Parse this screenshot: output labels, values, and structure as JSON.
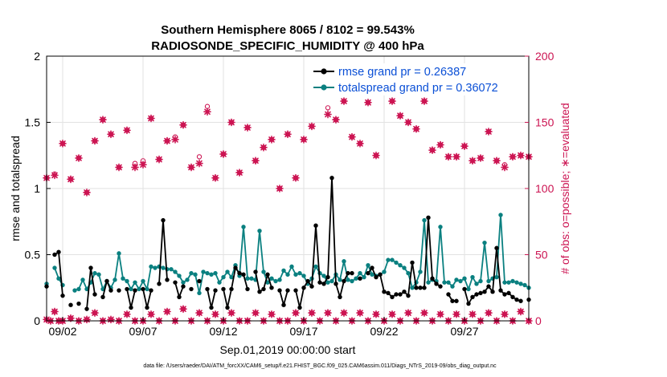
{
  "chart_data": {
    "type": "line",
    "title": "Southern Hemisphere 8065 / 8102 = 99.543%",
    "subtitle": "RADIOSONDE_SPECIFIC_HUMIDITY @ 400 hPa",
    "xlabel": "Sep.01,2019 00:00:00 start",
    "ylabel": "rmse and totalspread",
    "y2label": "# of obs: o=possible; ∗=evaluated",
    "footer": "data file: /Users/raeder/DAI/ATM_forcXX/CAM6_setup/f.e21.FHIST_BGC.f09_025.CAM6assim.011/Diags_NTrS_2019-09/obs_diag_output.nc",
    "xlim": [
      1,
      31
    ],
    "ylim": [
      0,
      2
    ],
    "y2lim": [
      0,
      200
    ],
    "grid": true,
    "legend_position": "top-right",
    "x_ticks": [
      {
        "value": 2,
        "label": "09/02"
      },
      {
        "value": 7,
        "label": "09/07"
      },
      {
        "value": 12,
        "label": "09/12"
      },
      {
        "value": 17,
        "label": "09/17"
      },
      {
        "value": 22,
        "label": "09/22"
      },
      {
        "value": 27,
        "label": "09/27"
      }
    ],
    "y_ticks": [
      {
        "value": 0,
        "label": "0"
      },
      {
        "value": 0.5,
        "label": "0.5"
      },
      {
        "value": 1,
        "label": "1"
      },
      {
        "value": 1.5,
        "label": "1.5"
      },
      {
        "value": 2,
        "label": "2"
      }
    ],
    "y2_ticks": [
      {
        "value": 0,
        "label": "0"
      },
      {
        "value": 50,
        "label": "50"
      },
      {
        "value": 100,
        "label": "100"
      },
      {
        "value": 150,
        "label": "150"
      },
      {
        "value": 200,
        "label": "200"
      }
    ],
    "x": [
      1.0,
      1.25,
      1.5,
      1.75,
      2.0,
      2.25,
      2.5,
      2.75,
      3.0,
      3.25,
      3.5,
      3.75,
      4.0,
      4.25,
      4.5,
      4.75,
      5.0,
      5.25,
      5.5,
      5.75,
      6.0,
      6.25,
      6.5,
      6.75,
      7.0,
      7.25,
      7.5,
      7.75,
      8.0,
      8.25,
      8.5,
      8.75,
      9.0,
      9.25,
      9.5,
      9.75,
      10.0,
      10.25,
      10.5,
      10.75,
      11.0,
      11.25,
      11.5,
      11.75,
      12.0,
      12.25,
      12.5,
      12.75,
      13.0,
      13.25,
      13.5,
      13.75,
      14.0,
      14.25,
      14.5,
      14.75,
      15.0,
      15.25,
      15.5,
      15.75,
      16.0,
      16.25,
      16.5,
      16.75,
      17.0,
      17.25,
      17.5,
      17.75,
      18.0,
      18.25,
      18.5,
      18.75,
      19.0,
      19.25,
      19.5,
      19.75,
      20.0,
      20.25,
      20.5,
      20.75,
      21.0,
      21.25,
      21.5,
      21.75,
      22.0,
      22.25,
      22.5,
      22.75,
      23.0,
      23.25,
      23.5,
      23.75,
      24.0,
      24.25,
      24.5,
      24.75,
      25.0,
      25.25,
      25.5,
      25.75,
      26.0,
      26.25,
      26.5,
      26.75,
      27.0,
      27.25,
      27.5,
      27.75,
      28.0,
      28.25,
      28.5,
      28.75,
      29.0,
      29.25,
      29.5,
      29.75,
      30.0,
      30.25,
      30.5,
      30.75,
      31.0
    ],
    "series": [
      {
        "name": "rmse grand pr = 0.26387",
        "label": "rmse grand pr = 0.26387",
        "color": "#000000",
        "values": [
          0.26,
          null,
          0.5,
          0.52,
          0.19,
          null,
          0.12,
          null,
          0.13,
          null,
          0.09,
          0.4,
          0.2,
          null,
          0.18,
          0.3,
          0.23,
          null,
          0.23,
          null,
          0.24,
          0.1,
          0.23,
          null,
          0.24,
          0.1,
          0.23,
          null,
          0.28,
          0.76,
          0.31,
          null,
          0.29,
          0.18,
          0.26,
          null,
          0.24,
          null,
          0.3,
          null,
          0.24,
          0.1,
          0.23,
          null,
          0.24,
          0.1,
          0.24,
          0.4,
          0.36,
          0.35,
          0.24,
          null,
          0.37,
          0.22,
          0.24,
          0.35,
          0.25,
          null,
          0.23,
          0.12,
          0.23,
          null,
          0.23,
          0.1,
          0.25,
          0.3,
          0.26,
          0.72,
          0.29,
          0.28,
          0.33,
          1.08,
          0.28,
          0.18,
          0.3,
          0.36,
          0.36,
          null,
          0.32,
          null,
          0.36,
          0.4,
          0.33,
          0.35,
          0.22,
          0.21,
          0.18,
          0.2,
          0.2,
          0.22,
          0.19,
          0.44,
          0.25,
          0.25,
          0.25,
          0.78,
          0.32,
          0.28,
          0.26,
          null,
          0.2,
          0.15,
          0.15,
          null,
          0.24,
          0.13,
          0.18,
          0.2,
          0.21,
          0.22,
          0.26,
          0.22,
          0.55,
          0.23,
          0.2,
          0.21,
          0.18,
          0.16,
          0.15,
          null,
          0.16
        ]
      },
      {
        "name": "totalspread grand pr = 0.36072",
        "label": "totalspread grand pr = 0.36072",
        "color": "#0a8080",
        "values": [
          0.28,
          null,
          0.4,
          0.32,
          0.27,
          null,
          null,
          0.23,
          0.24,
          0.31,
          0.24,
          0.29,
          0.36,
          0.35,
          0.24,
          0.3,
          0.25,
          0.31,
          0.51,
          0.32,
          0.3,
          0.24,
          0.29,
          0.24,
          0.3,
          0.24,
          0.41,
          0.4,
          0.41,
          0.4,
          0.39,
          0.39,
          0.37,
          0.34,
          0.29,
          0.31,
          0.36,
          0.35,
          0.21,
          0.37,
          0.36,
          0.35,
          0.36,
          0.29,
          0.33,
          0.37,
          0.33,
          0.42,
          0.34,
          0.71,
          0.32,
          0.32,
          0.31,
          0.68,
          0.37,
          0.29,
          0.32,
          0.3,
          0.31,
          0.38,
          0.35,
          0.41,
          0.35,
          0.36,
          0.34,
          0.28,
          0.32,
          0.41,
          0.36,
          0.34,
          0.29,
          0.3,
          0.35,
          0.31,
          0.45,
          0.31,
          0.3,
          0.32,
          0.36,
          0.33,
          0.42,
          0.35,
          0.34,
          0.35,
          0.37,
          0.46,
          0.46,
          0.44,
          0.42,
          0.4,
          0.36,
          0.25,
          0.29,
          0.37,
          0.76,
          0.29,
          0.31,
          0.3,
          0.71,
          0.29,
          0.29,
          0.26,
          0.31,
          0.3,
          0.32,
          0.24,
          0.33,
          0.28,
          0.3,
          0.59,
          0.3,
          0.32,
          0.33,
          0.8,
          0.29,
          0.29,
          0.3,
          0.29,
          0.28,
          0.27,
          0.25
        ]
      }
    ],
    "obs_series": [
      {
        "name": "possible",
        "marker": "o",
        "color": "#cc1452",
        "x": [
          1.0,
          1.5,
          2.0,
          2.5,
          3.0,
          3.5,
          4.0,
          4.5,
          5.0,
          5.5,
          6.0,
          6.5,
          7.0,
          7.5,
          8.0,
          8.5,
          9.0,
          9.5,
          10.0,
          10.5,
          11.0,
          11.5,
          12.0,
          12.5,
          13.0,
          13.5,
          14.0,
          14.5,
          15.0,
          15.5,
          16.0,
          16.5,
          17.0,
          17.5,
          18.0,
          18.5,
          19.0,
          19.5,
          20.0,
          20.5,
          21.0,
          21.5,
          22.0,
          22.5,
          23.0,
          23.5,
          24.0,
          24.5,
          25.0,
          25.5,
          26.0,
          26.5,
          27.0,
          27.5,
          28.0,
          28.5,
          29.0,
          29.5,
          30.0,
          30.5,
          31.0
        ],
        "values": [
          108,
          111,
          134,
          107,
          123,
          97,
          136,
          152,
          141,
          116,
          144,
          119,
          121,
          153,
          122,
          136,
          139,
          148,
          116,
          124,
          162,
          108,
          126,
          150,
          112,
          146,
          121,
          131,
          137,
          100,
          141,
          108,
          137,
          147,
          174,
          161,
          152,
          166,
          139,
          134,
          165,
          125,
          186,
          166,
          155,
          150,
          145,
          166,
          129,
          133,
          124,
          124,
          132,
          121,
          123,
          143,
          121,
          118,
          124,
          125,
          124
        ]
      },
      {
        "name": "evaluated",
        "marker": "*",
        "color": "#cc1452",
        "x": [
          1.0,
          1.5,
          2.0,
          2.5,
          3.0,
          3.5,
          4.0,
          4.5,
          5.0,
          5.5,
          6.0,
          6.5,
          7.0,
          7.5,
          8.0,
          8.5,
          9.0,
          9.5,
          10.0,
          10.5,
          11.0,
          11.5,
          12.0,
          12.5,
          13.0,
          13.5,
          14.0,
          14.5,
          15.0,
          15.5,
          16.0,
          16.5,
          17.0,
          17.5,
          18.0,
          18.5,
          19.0,
          19.5,
          20.0,
          20.5,
          21.0,
          21.5,
          22.0,
          22.5,
          23.0,
          23.5,
          24.0,
          24.5,
          25.0,
          25.5,
          26.0,
          26.5,
          27.0,
          27.5,
          28.0,
          28.5,
          29.0,
          29.5,
          30.0,
          30.5,
          31.0
        ],
        "values": [
          108,
          110,
          134,
          107,
          123,
          97,
          136,
          152,
          141,
          116,
          144,
          116,
          118,
          153,
          122,
          136,
          137,
          148,
          116,
          119,
          158,
          108,
          126,
          150,
          112,
          146,
          121,
          131,
          137,
          100,
          141,
          108,
          137,
          147,
          174,
          156,
          152,
          166,
          139,
          134,
          165,
          125,
          186,
          166,
          155,
          150,
          145,
          166,
          129,
          133,
          124,
          124,
          132,
          121,
          123,
          143,
          121,
          116,
          124,
          125,
          124
        ]
      },
      {
        "name": "possible-baseline",
        "marker": "o",
        "color": "#cc1452",
        "x": [
          1.0,
          1.25,
          1.5,
          1.75,
          2.0,
          2.5,
          3.0,
          3.5,
          4.0,
          4.5,
          5.0,
          5.5,
          6.0,
          6.5,
          7.0,
          7.5,
          8.0,
          8.5,
          9.0,
          9.5,
          10.0,
          10.5,
          11.0,
          11.5,
          12.0,
          12.5,
          13.0,
          13.5,
          14.0,
          14.5,
          15.0,
          15.5,
          16.0,
          16.5,
          17.0,
          17.5,
          18.0,
          18.5,
          19.0,
          19.5,
          20.0,
          20.5,
          21.0,
          21.5,
          22.0,
          22.5,
          23.0,
          23.5,
          24.0,
          24.5,
          25.0,
          25.5,
          26.0,
          26.5,
          27.0,
          27.5,
          28.0,
          28.5,
          29.0,
          29.5,
          30.0,
          30.5,
          31.0
        ],
        "values": [
          1,
          0,
          7,
          0,
          0,
          2,
          0,
          1,
          6,
          0,
          1,
          0,
          5,
          0,
          0,
          5,
          0,
          7,
          0,
          9,
          0,
          6,
          0,
          5,
          0,
          6,
          0,
          0,
          6,
          0,
          5,
          0,
          0,
          6,
          0,
          6,
          0,
          6,
          0,
          6,
          0,
          6,
          0,
          5,
          0,
          5,
          0,
          6,
          0,
          6,
          0,
          5,
          0,
          5,
          0,
          5,
          0,
          6,
          0,
          5,
          0,
          7,
          0
        ]
      },
      {
        "name": "evaluated-baseline",
        "marker": "*",
        "color": "#cc1452",
        "x": [
          1.0,
          1.25,
          1.5,
          1.75,
          2.0,
          2.5,
          3.0,
          3.5,
          4.0,
          4.5,
          5.0,
          5.5,
          6.0,
          6.5,
          7.0,
          7.5,
          8.0,
          8.5,
          9.0,
          9.5,
          10.0,
          10.5,
          11.0,
          11.5,
          12.0,
          12.5,
          13.0,
          13.5,
          14.0,
          14.5,
          15.0,
          15.5,
          16.0,
          16.5,
          17.0,
          17.5,
          18.0,
          18.5,
          19.0,
          19.5,
          20.0,
          20.5,
          21.0,
          21.5,
          22.0,
          22.5,
          23.0,
          23.5,
          24.0,
          24.5,
          25.0,
          25.5,
          26.0,
          26.5,
          27.0,
          27.5,
          28.0,
          28.5,
          29.0,
          29.5,
          30.0,
          30.5,
          31.0
        ],
        "values": [
          1,
          0,
          7,
          0,
          0,
          2,
          0,
          1,
          6,
          0,
          1,
          0,
          5,
          0,
          0,
          5,
          0,
          7,
          0,
          9,
          0,
          6,
          0,
          5,
          0,
          6,
          0,
          0,
          6,
          0,
          5,
          0,
          0,
          6,
          0,
          6,
          0,
          6,
          0,
          6,
          0,
          6,
          0,
          5,
          0,
          5,
          0,
          6,
          0,
          6,
          0,
          5,
          0,
          5,
          0,
          5,
          0,
          6,
          0,
          5,
          0,
          7,
          0
        ]
      }
    ]
  }
}
